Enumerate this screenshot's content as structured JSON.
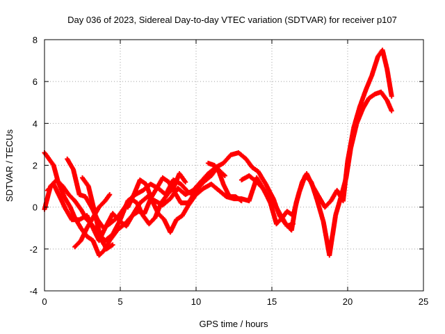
{
  "chart_data": {
    "type": "scatter",
    "title": "Day 036 of 2023, Sidereal Day-to-day VTEC variation (SDTVAR) for receiver p107",
    "xlabel": "GPS time / hours",
    "ylabel": "SDTVAR / TECUs",
    "xlim": [
      0,
      25
    ],
    "ylim": [
      -4,
      8
    ],
    "xticks": [
      0,
      5,
      10,
      15,
      20,
      25
    ],
    "yticks": [
      -4,
      -2,
      0,
      2,
      4,
      6,
      8
    ],
    "xtick_labels": [
      "0",
      "5",
      "10",
      "15",
      "20",
      "25"
    ],
    "ytick_labels": [
      "-4",
      "-2",
      "0",
      "2",
      "4",
      "6",
      "8"
    ],
    "grid": true,
    "legend": "none",
    "marker": "plus",
    "series": [
      {
        "name": "track-1",
        "color": "#ff0000",
        "points": [
          [
            0.0,
            2.6
          ],
          [
            0.3,
            2.3
          ],
          [
            0.6,
            2.0
          ],
          [
            0.9,
            1.2
          ],
          [
            1.3,
            0.5
          ],
          [
            1.7,
            0.0
          ],
          [
            2.0,
            -0.5
          ],
          [
            2.4,
            -1.0
          ],
          [
            2.8,
            -1.4
          ],
          [
            3.2,
            -1.6
          ],
          [
            3.6,
            -2.3
          ],
          [
            3.9,
            -2.1
          ],
          [
            4.3,
            -1.6
          ],
          [
            4.8,
            -1.1
          ],
          [
            5.3,
            -0.8
          ],
          [
            5.8,
            -0.4
          ],
          [
            6.3,
            0.2
          ],
          [
            6.8,
            0.5
          ],
          [
            7.3,
            0.3
          ],
          [
            7.8,
            0.1
          ],
          [
            8.3,
            0.4
          ],
          [
            8.8,
            0.9
          ],
          [
            9.3,
            0.6
          ],
          [
            9.8,
            0.8
          ],
          [
            10.3,
            1.2
          ],
          [
            10.8,
            1.6
          ],
          [
            11.3,
            1.9
          ],
          [
            11.8,
            2.1
          ],
          [
            12.3,
            2.5
          ],
          [
            12.8,
            2.6
          ],
          [
            13.3,
            2.3
          ],
          [
            13.7,
            1.9
          ],
          [
            14.1,
            1.7
          ],
          [
            14.6,
            1.1
          ],
          [
            15.1,
            0.4
          ],
          [
            15.5,
            -0.4
          ],
          [
            15.9,
            -0.8
          ],
          [
            16.3,
            -1.1
          ],
          [
            16.6,
            0.2
          ],
          [
            17.0,
            1.2
          ],
          [
            17.3,
            1.6
          ],
          [
            17.7,
            1.0
          ],
          [
            18.1,
            0.5
          ],
          [
            18.5,
            0.0
          ],
          [
            18.9,
            0.3
          ],
          [
            19.3,
            0.8
          ],
          [
            19.7,
            0.3
          ],
          [
            20.0,
            2.2
          ],
          [
            20.4,
            3.8
          ],
          [
            20.8,
            4.8
          ],
          [
            21.2,
            5.6
          ],
          [
            21.6,
            6.3
          ],
          [
            22.0,
            7.2
          ],
          [
            22.3,
            7.5
          ],
          [
            22.6,
            6.6
          ],
          [
            22.9,
            5.3
          ]
        ]
      },
      {
        "name": "track-2",
        "color": "#ff0000",
        "points": [
          [
            0.0,
            -0.1
          ],
          [
            0.4,
            1.0
          ],
          [
            0.8,
            1.3
          ],
          [
            1.2,
            1.0
          ],
          [
            1.6,
            0.6
          ],
          [
            2.0,
            0.3
          ],
          [
            2.4,
            -0.1
          ],
          [
            2.8,
            -0.6
          ],
          [
            3.2,
            -0.9
          ],
          [
            3.6,
            -1.3
          ],
          [
            4.0,
            -1.6
          ],
          [
            4.5,
            -1.3
          ],
          [
            5.0,
            -0.6
          ],
          [
            5.5,
            0.3
          ],
          [
            6.0,
            0.6
          ],
          [
            6.5,
            0.8
          ],
          [
            7.0,
            1.1
          ],
          [
            7.5,
            0.9
          ],
          [
            8.0,
            0.6
          ],
          [
            8.5,
            1.3
          ],
          [
            9.0,
            1.1
          ],
          [
            9.5,
            0.7
          ],
          [
            10.0,
            0.6
          ],
          [
            10.5,
            0.9
          ],
          [
            11.0,
            1.1
          ],
          [
            11.5,
            0.8
          ],
          [
            12.0,
            0.5
          ],
          [
            12.5,
            0.4
          ],
          [
            13.0,
            0.4
          ],
          [
            13.5,
            0.3
          ],
          [
            14.0,
            1.4
          ],
          [
            14.5,
            0.8
          ],
          [
            14.9,
            0.2
          ],
          [
            15.3,
            -0.8
          ],
          [
            15.7,
            -0.5
          ],
          [
            16.0,
            -0.2
          ],
          [
            16.4,
            -0.4
          ],
          [
            16.8,
            0.7
          ],
          [
            17.2,
            1.5
          ],
          [
            17.6,
            1.2
          ],
          [
            18.0,
            0.3
          ],
          [
            18.4,
            -0.7
          ],
          [
            18.8,
            -2.3
          ],
          [
            19.2,
            -0.4
          ],
          [
            19.6,
            0.6
          ],
          [
            19.9,
            1.4
          ],
          [
            20.2,
            2.8
          ],
          [
            20.6,
            4.0
          ],
          [
            21.0,
            4.7
          ],
          [
            21.4,
            5.2
          ],
          [
            21.8,
            5.4
          ],
          [
            22.2,
            5.5
          ],
          [
            22.6,
            5.1
          ],
          [
            22.9,
            4.6
          ]
        ]
      },
      {
        "name": "track-3",
        "color": "#ff0000",
        "points": [
          [
            0.2,
            0.8
          ],
          [
            0.6,
            1.1
          ],
          [
            1.0,
            0.5
          ],
          [
            1.4,
            -0.1
          ],
          [
            1.8,
            -0.6
          ],
          [
            2.3,
            -0.6
          ],
          [
            2.8,
            -0.4
          ],
          [
            3.2,
            -1.0
          ],
          [
            3.6,
            -1.6
          ],
          [
            4.0,
            -1.0
          ],
          [
            4.5,
            -0.3
          ],
          [
            5.0,
            -0.7
          ],
          [
            5.4,
            -0.9
          ],
          [
            5.8,
            -0.4
          ],
          [
            6.2,
            -0.2
          ],
          [
            6.6,
            -0.3
          ],
          [
            7.0,
            0.4
          ],
          [
            7.4,
            0.9
          ],
          [
            7.8,
            1.4
          ],
          [
            8.2,
            1.2
          ],
          [
            8.6,
            0.7
          ],
          [
            9.0,
            0.2
          ],
          [
            9.5,
            0.2
          ],
          [
            10.0,
            0.8
          ],
          [
            10.5,
            1.2
          ],
          [
            11.0,
            1.5
          ],
          [
            11.4,
            1.9
          ],
          [
            11.8,
            1.1
          ],
          [
            12.2,
            0.5
          ],
          [
            12.6,
            0.5
          ],
          [
            13.0,
            0.3
          ]
        ]
      },
      {
        "name": "track-4",
        "color": "#ff0000",
        "points": [
          [
            1.5,
            2.3
          ],
          [
            1.9,
            1.8
          ],
          [
            2.3,
            0.6
          ],
          [
            2.7,
            0.5
          ],
          [
            3.1,
            0.0
          ],
          [
            3.5,
            -0.6
          ],
          [
            3.9,
            -1.0
          ],
          [
            4.3,
            -0.8
          ],
          [
            4.8,
            -0.5
          ],
          [
            5.3,
            0.0
          ],
          [
            5.7,
            0.4
          ],
          [
            6.1,
            0.2
          ],
          [
            6.5,
            -0.4
          ],
          [
            6.9,
            -0.8
          ],
          [
            7.3,
            -0.5
          ],
          [
            7.7,
            0.2
          ],
          [
            8.1,
            0.6
          ],
          [
            8.5,
            0.9
          ],
          [
            8.9,
            1.6
          ],
          [
            9.3,
            1.2
          ]
        ]
      },
      {
        "name": "track-5",
        "color": "#ff0000",
        "points": [
          [
            2.0,
            -1.9
          ],
          [
            2.4,
            -1.6
          ],
          [
            2.8,
            -1.0
          ],
          [
            3.2,
            -0.5
          ],
          [
            3.6,
            0.0
          ],
          [
            4.0,
            0.3
          ],
          [
            4.3,
            0.6
          ]
        ]
      },
      {
        "name": "track-6",
        "color": "#ff0000",
        "points": [
          [
            2.5,
            1.4
          ],
          [
            2.9,
            1.0
          ],
          [
            3.3,
            -0.2
          ],
          [
            3.7,
            -1.5
          ],
          [
            4.1,
            -2.0
          ],
          [
            4.5,
            -1.8
          ]
        ]
      },
      {
        "name": "track-7",
        "color": "#ff0000",
        "points": [
          [
            5.5,
            0.0
          ],
          [
            5.9,
            0.6
          ],
          [
            6.3,
            1.3
          ],
          [
            6.7,
            1.1
          ],
          [
            7.1,
            0.3
          ],
          [
            7.5,
            -0.3
          ],
          [
            7.9,
            -0.6
          ],
          [
            8.3,
            -1.2
          ],
          [
            8.7,
            -0.6
          ],
          [
            9.1,
            -0.4
          ],
          [
            9.5,
            0.1
          ],
          [
            9.9,
            0.5
          ]
        ]
      },
      {
        "name": "track-8",
        "color": "#ff0000",
        "points": [
          [
            10.8,
            2.1
          ],
          [
            11.2,
            2.0
          ],
          [
            11.6,
            1.7
          ],
          [
            11.9,
            1.5
          ]
        ]
      },
      {
        "name": "track-9",
        "color": "#ff0000",
        "points": [
          [
            13.0,
            1.3
          ],
          [
            13.5,
            1.5
          ],
          [
            14.0,
            1.2
          ],
          [
            14.4,
            0.9
          ],
          [
            14.8,
            0.4
          ],
          [
            15.2,
            0.1
          ],
          [
            15.6,
            -0.4
          ],
          [
            16.0,
            -0.9
          ],
          [
            16.4,
            -0.8
          ]
        ]
      }
    ]
  }
}
